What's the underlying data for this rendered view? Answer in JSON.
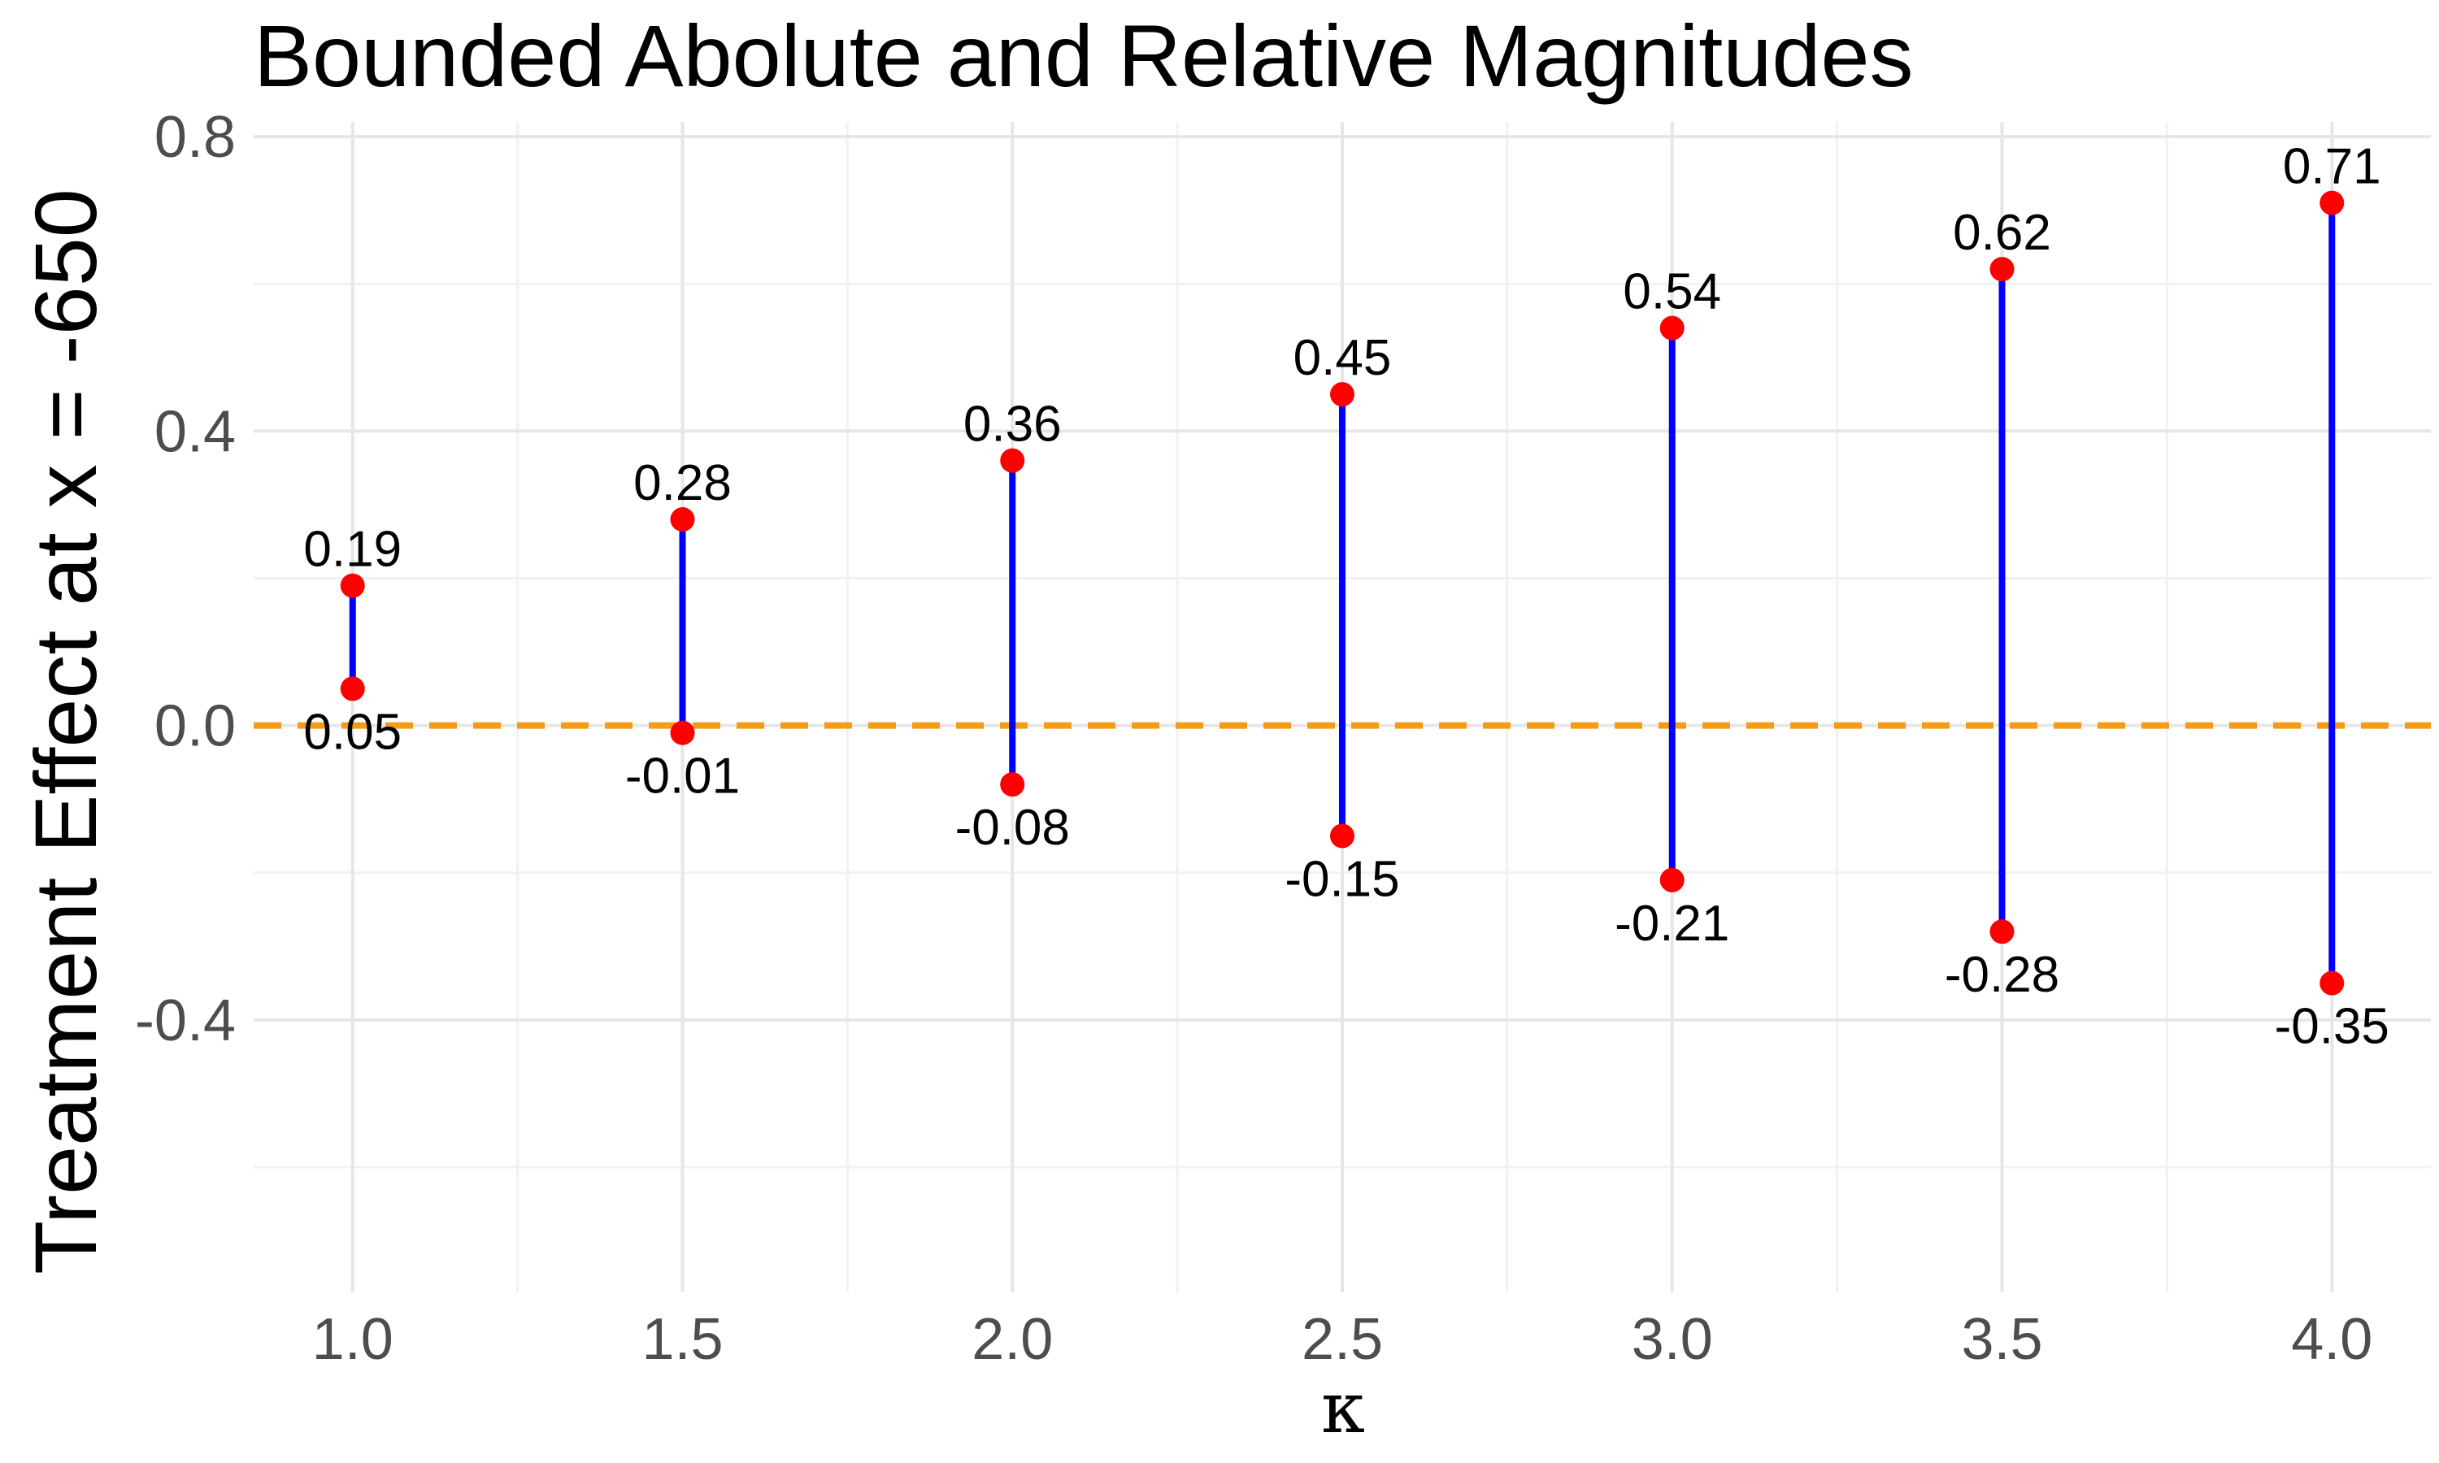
{
  "chart_data": {
    "type": "range",
    "title": "Bounded Abolute and Relative Magnitudes",
    "xlabel": "κ",
    "ylabel": "Treatment Effect at x = -650",
    "x": [
      1.0,
      1.5,
      2.0,
      2.5,
      3.0,
      3.5,
      4.0
    ],
    "upper": [
      0.19,
      0.28,
      0.36,
      0.45,
      0.54,
      0.62,
      0.71
    ],
    "lower": [
      0.05,
      -0.01,
      -0.08,
      -0.15,
      -0.21,
      -0.28,
      -0.35
    ],
    "upper_labels": [
      "0.19",
      "0.28",
      "0.36",
      "0.45",
      "0.54",
      "0.62",
      "0.71"
    ],
    "lower_labels": [
      "0.05",
      "-0.01",
      "-0.08",
      "-0.15",
      "-0.21",
      "-0.28",
      "-0.35"
    ],
    "xticks": [
      "1.0",
      "1.5",
      "2.0",
      "2.5",
      "3.0",
      "3.5",
      "4.0"
    ],
    "yticks": [
      "-0.4",
      "0.0",
      "0.4",
      "0.8"
    ],
    "xlim": [
      0.85,
      4.15
    ],
    "ylim": [
      -0.77,
      0.82
    ],
    "reference_line": {
      "y": 0,
      "style": "dashed",
      "color": "#F39C1A"
    },
    "colors": {
      "segment": "#0000FF",
      "point": "#FF0000"
    },
    "grid": true,
    "legend": "none"
  }
}
